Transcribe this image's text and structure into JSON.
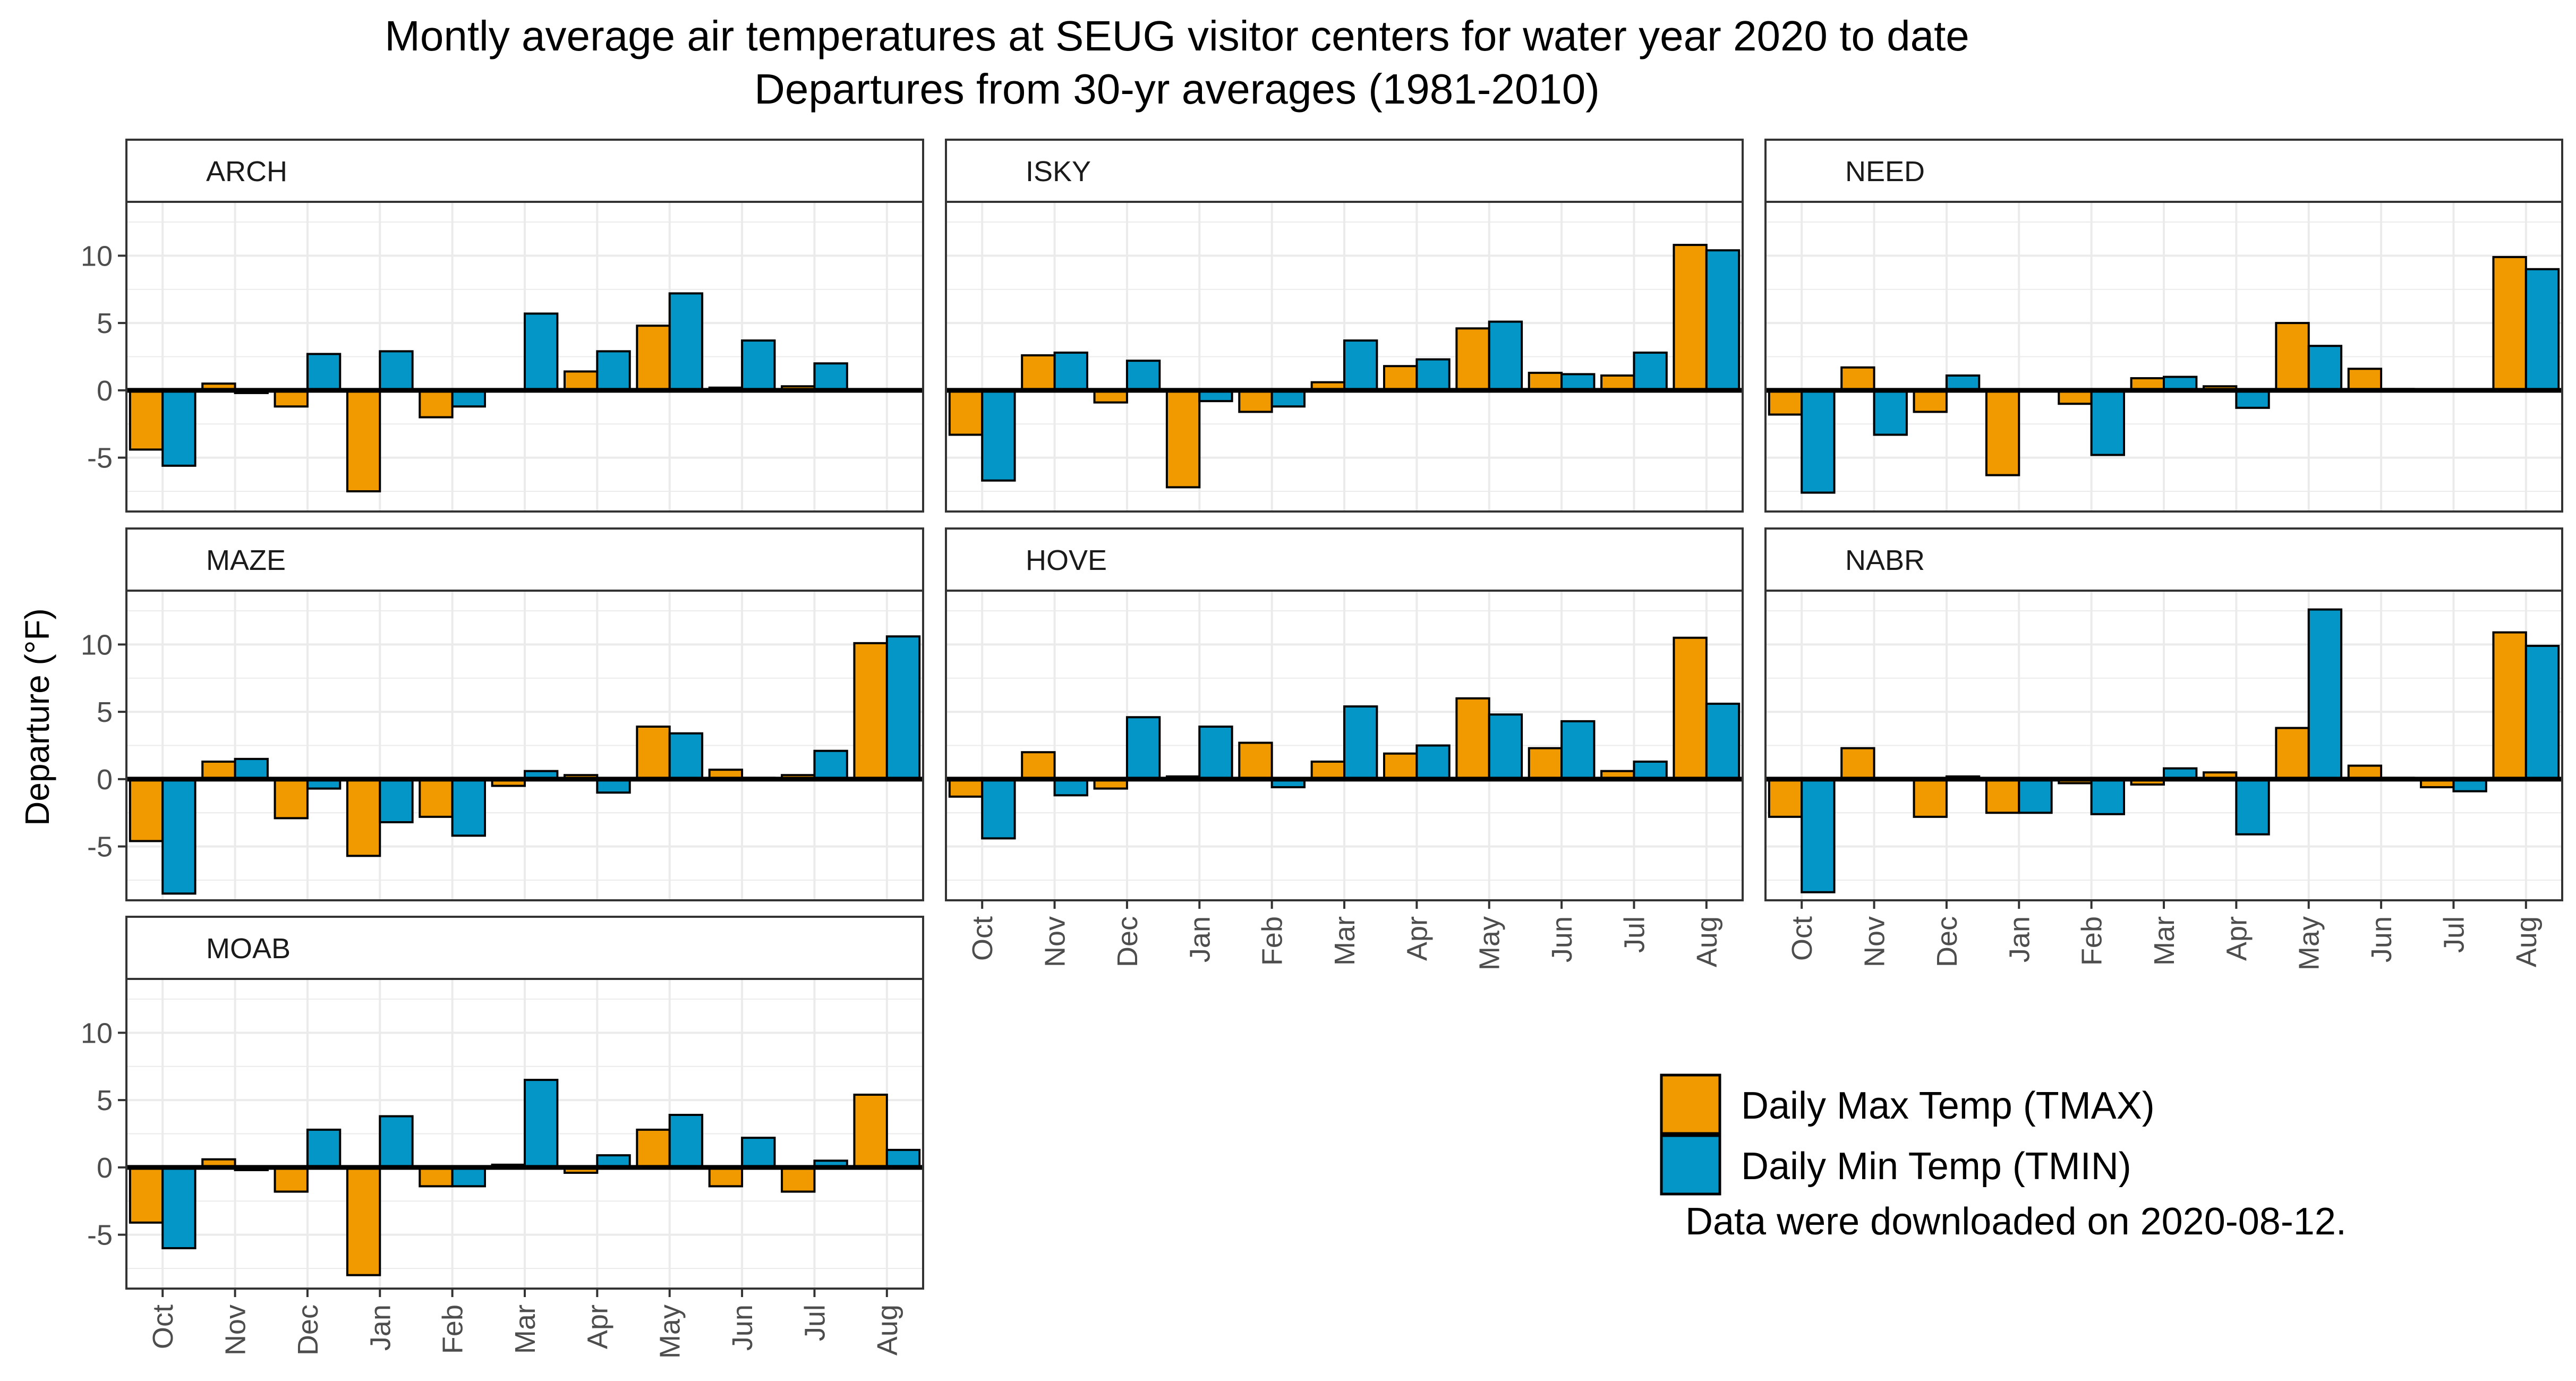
{
  "title": "Montly average air temperatures at SEUG visitor centers for water year 2020 to date",
  "subtitle": "Departures from 30-yr averages (1981-2010)",
  "note": "Data were downloaded on 2020-08-12.",
  "colors": {
    "tmax": "#F09A00",
    "tmin": "#0596C8",
    "grid": "#EBEBEB"
  },
  "chart_data": {
    "type": "bar",
    "ylabel": "Departure (°F)",
    "ylim": [
      -9,
      14
    ],
    "yticks": [
      -5,
      0,
      5,
      10
    ],
    "categories": [
      "Oct",
      "Nov",
      "Dec",
      "Jan",
      "Feb",
      "Mar",
      "Apr",
      "May",
      "Jun",
      "Jul",
      "Aug"
    ],
    "legend": [
      {
        "key": "tmax",
        "label": "Daily Max Temp (TMAX)"
      },
      {
        "key": "tmin",
        "label": "Daily Min Temp (TMIN)"
      }
    ],
    "panels": [
      {
        "name": "ARCH",
        "tmax": [
          -4.4,
          0.5,
          -1.2,
          -7.5,
          -2.0,
          0.0,
          1.4,
          4.8,
          0.2,
          0.3,
          null
        ],
        "tmin": [
          -5.6,
          -0.2,
          2.7,
          2.9,
          -1.2,
          5.7,
          2.9,
          7.2,
          3.7,
          2.0,
          null
        ]
      },
      {
        "name": "ISKY",
        "tmax": [
          -3.3,
          2.6,
          -0.9,
          -7.2,
          -1.6,
          0.6,
          1.8,
          4.6,
          1.3,
          1.1,
          10.8
        ],
        "tmin": [
          -6.7,
          2.8,
          2.2,
          -0.8,
          -1.2,
          3.7,
          2.3,
          5.1,
          1.2,
          2.8,
          10.4
        ]
      },
      {
        "name": "NEED",
        "tmax": [
          -1.8,
          1.7,
          -1.6,
          -6.3,
          -1.0,
          0.9,
          0.3,
          5.0,
          1.6,
          0.0,
          9.9
        ],
        "tmin": [
          -7.6,
          -3.3,
          1.1,
          0.0,
          -4.8,
          1.0,
          -1.3,
          3.3,
          0.1,
          0.0,
          9.0
        ]
      },
      {
        "name": "MAZE",
        "tmax": [
          -4.6,
          1.3,
          -2.9,
          -5.7,
          -2.8,
          -0.5,
          0.3,
          3.9,
          0.7,
          0.3,
          10.1
        ],
        "tmin": [
          -8.5,
          1.5,
          -0.7,
          -3.2,
          -4.2,
          0.6,
          -1.0,
          3.4,
          0.1,
          2.1,
          10.6
        ]
      },
      {
        "name": "HOVE",
        "tmax": [
          -1.3,
          2.0,
          -0.7,
          0.2,
          2.7,
          1.3,
          1.9,
          6.0,
          2.3,
          0.6,
          10.5
        ],
        "tmin": [
          -4.4,
          -1.2,
          4.6,
          3.9,
          -0.6,
          5.4,
          2.5,
          4.8,
          4.3,
          1.3,
          5.6
        ]
      },
      {
        "name": "NABR",
        "tmax": [
          -2.8,
          2.3,
          -2.8,
          -2.5,
          -0.3,
          -0.4,
          0.5,
          3.8,
          1.0,
          -0.6,
          10.9
        ],
        "tmin": [
          -8.4,
          0.0,
          0.2,
          -2.5,
          -2.6,
          0.8,
          -4.1,
          12.6,
          0.1,
          -0.9,
          9.9
        ]
      },
      {
        "name": "MOAB",
        "tmax": [
          -4.1,
          0.6,
          -1.8,
          -8.0,
          -1.4,
          0.2,
          -0.4,
          2.8,
          -1.4,
          -1.8,
          5.4
        ],
        "tmin": [
          -6.0,
          -0.2,
          2.8,
          3.8,
          -1.4,
          6.5,
          0.9,
          3.9,
          2.2,
          0.5,
          1.3
        ]
      }
    ]
  }
}
